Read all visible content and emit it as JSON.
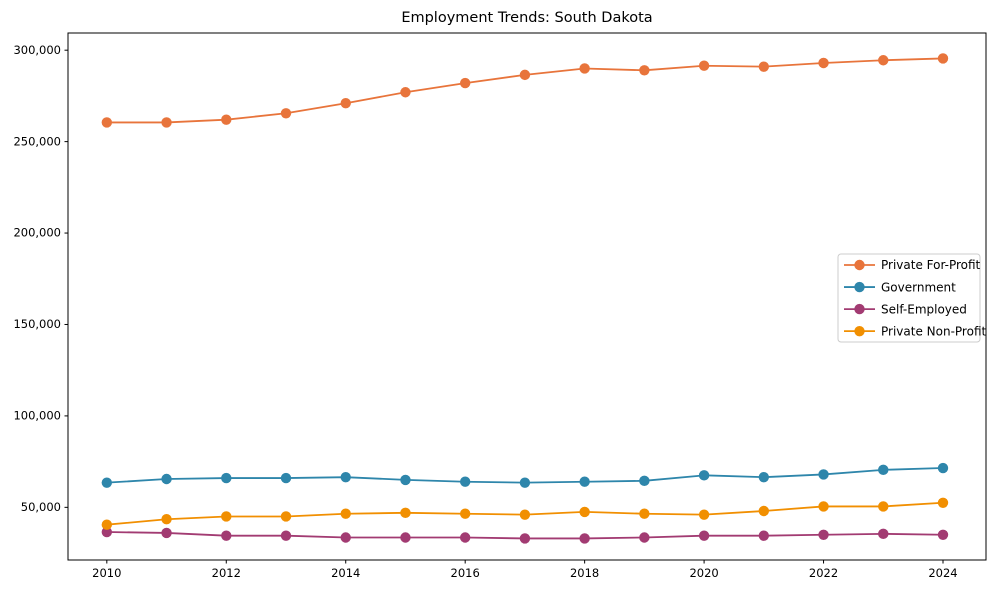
{
  "figure": {
    "background": "#ffffff"
  },
  "chart_data": {
    "type": "line",
    "title": "Employment Trends: South Dakota",
    "xlabel": "",
    "ylabel": "",
    "grid": false,
    "legend_position": "center-right",
    "marker": "circle",
    "axis_color": "#000000",
    "text_color": "#000000",
    "legend_border_color": "#cccccc",
    "legend_background": "#ffffff",
    "x": [
      2010,
      2011,
      2012,
      2013,
      2014,
      2015,
      2016,
      2017,
      2018,
      2019,
      2020,
      2021,
      2022,
      2023,
      2024
    ],
    "series": [
      {
        "name": "Private For-Profit",
        "color": "#E8743B",
        "values": [
          260500,
          260500,
          262000,
          265500,
          271000,
          277000,
          282000,
          286500,
          290000,
          289000,
          291500,
          291000,
          293000,
          294500,
          295500
        ]
      },
      {
        "name": "Government",
        "color": "#2E86AB",
        "values": [
          63500,
          65500,
          66000,
          66000,
          66500,
          65000,
          64000,
          63500,
          64000,
          64500,
          67500,
          66500,
          68000,
          70500,
          71500
        ]
      },
      {
        "name": "Self-Employed",
        "color": "#A23B72",
        "values": [
          36500,
          36000,
          34500,
          34500,
          33500,
          33500,
          33500,
          33000,
          33000,
          33500,
          34500,
          34500,
          35000,
          35500,
          35000
        ]
      },
      {
        "name": "Private Non-Profit",
        "color": "#F18F01",
        "values": [
          40500,
          43500,
          45000,
          45000,
          46500,
          47000,
          46500,
          46000,
          47500,
          46500,
          46000,
          48000,
          50500,
          50500,
          52500
        ]
      }
    ],
    "xticks": [
      2010,
      2012,
      2014,
      2016,
      2018,
      2020,
      2022,
      2024
    ],
    "xtick_labels": [
      "2010",
      "2012",
      "2014",
      "2016",
      "2018",
      "2020",
      "2022",
      "2024"
    ],
    "yticks": [
      50000,
      100000,
      150000,
      200000,
      250000,
      300000
    ],
    "ytick_labels": [
      "50,000",
      "100,000",
      "150,000",
      "200,000",
      "250,000",
      "300,000"
    ],
    "xlim": [
      2009.35,
      2024.72
    ],
    "ylim": [
      21200,
      309400
    ]
  }
}
